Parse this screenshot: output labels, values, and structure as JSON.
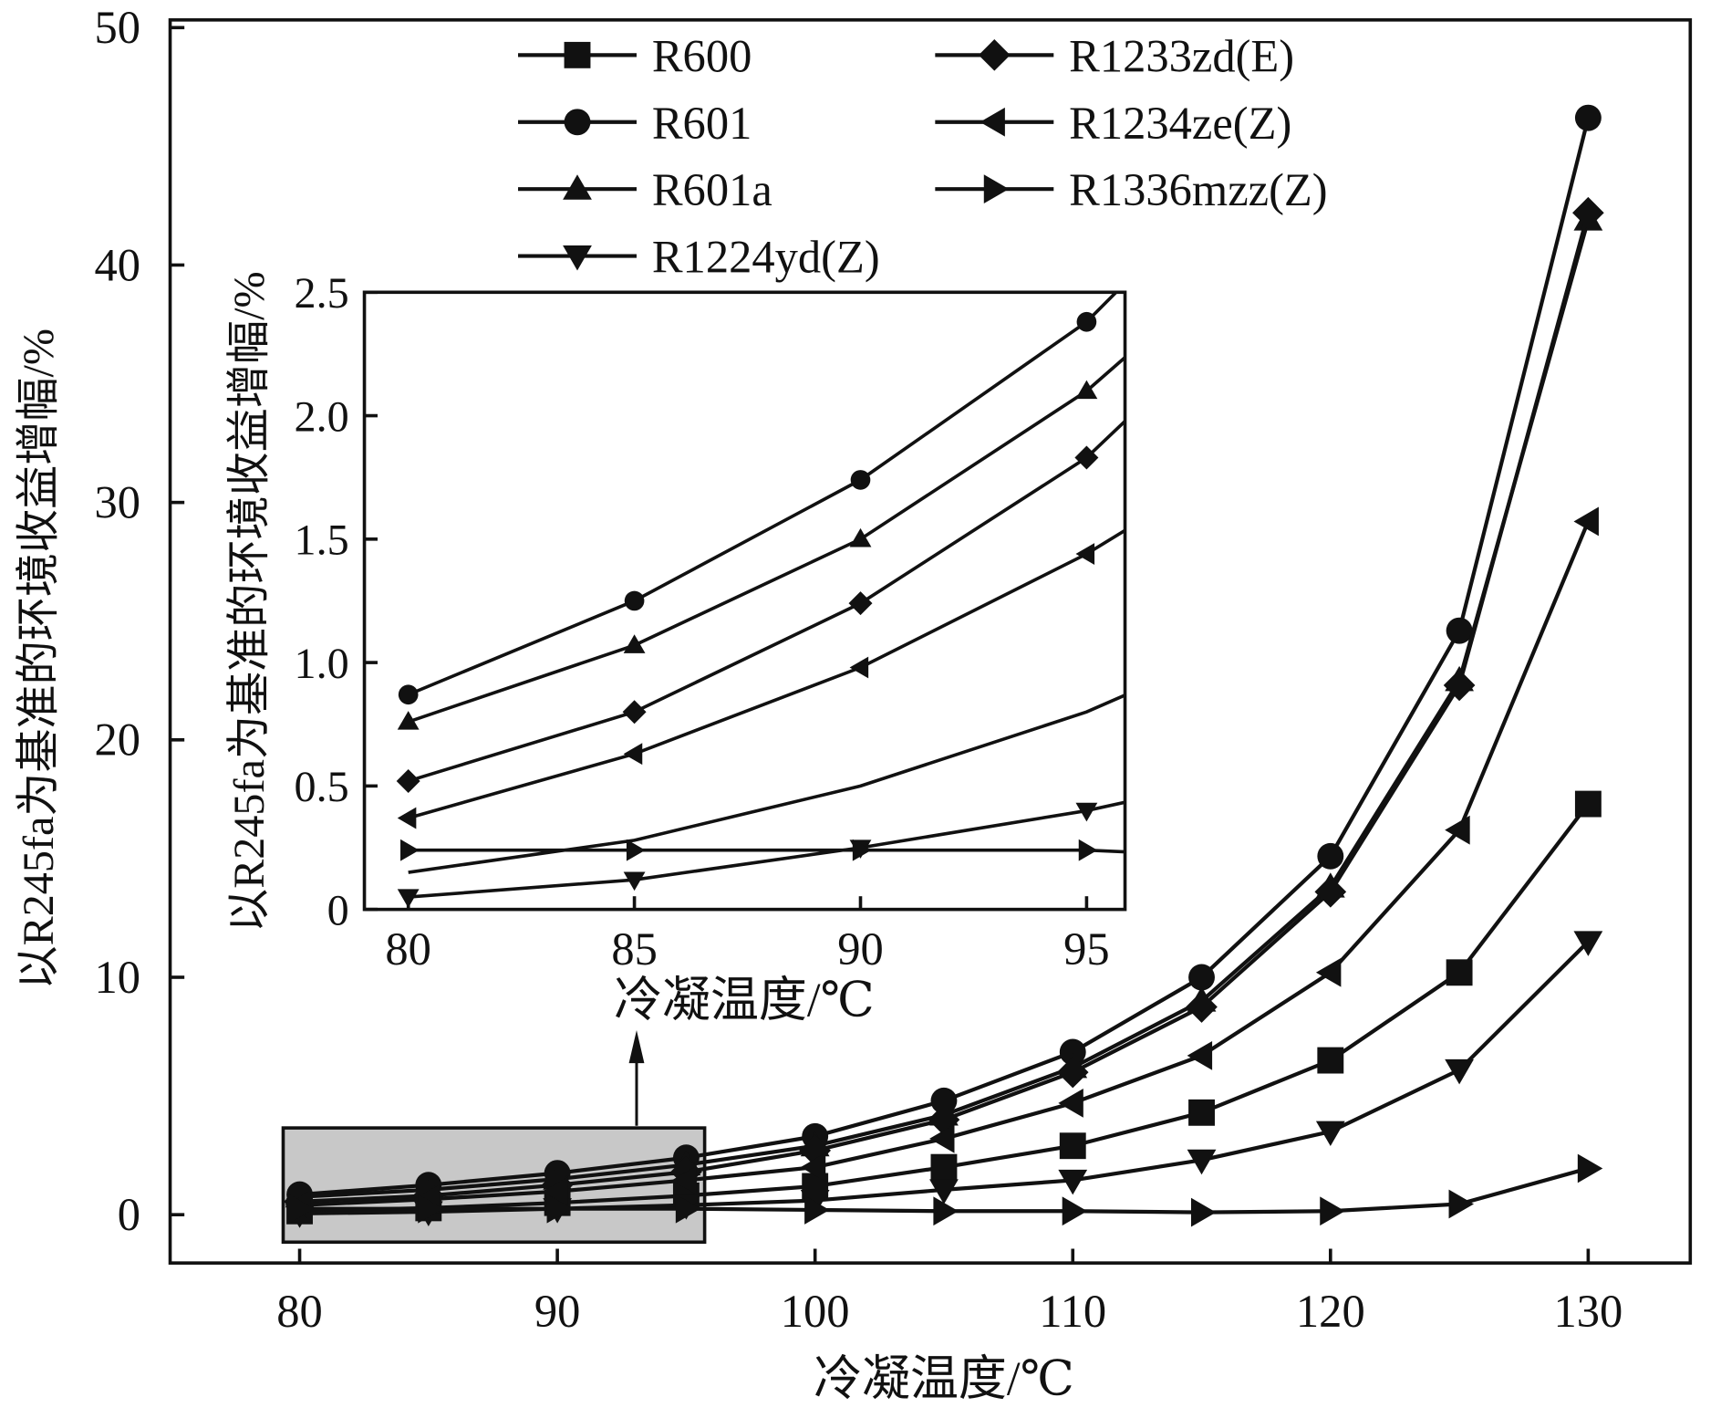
{
  "chart_data": [
    {
      "type": "line",
      "name": "main",
      "xlabel": "冷凝温度/℃",
      "ylabel": "以R245fa为基准的环境收益增幅/%",
      "xlim": [
        75,
        135
      ],
      "ylim": [
        -2,
        52
      ],
      "xticks": [
        80,
        90,
        100,
        110,
        120,
        130
      ],
      "yticks": [
        0,
        10,
        20,
        30,
        40,
        50
      ],
      "legend_position": "top",
      "x": [
        80,
        85,
        90,
        95,
        100,
        105,
        110,
        115,
        120,
        125,
        130
      ],
      "series": [
        {
          "name": "R600",
          "marker": "square",
          "values": [
            0.15,
            0.28,
            0.5,
            0.8,
            1.2,
            2.0,
            2.9,
            4.3,
            6.5,
            10.2,
            17.3
          ]
        },
        {
          "name": "R601",
          "marker": "circle",
          "values": [
            0.85,
            1.25,
            1.75,
            2.4,
            3.3,
            4.8,
            6.85,
            10.0,
            15.1,
            24.6,
            46.2
          ]
        },
        {
          "name": "R601a",
          "marker": "triangle-up",
          "values": [
            0.75,
            1.05,
            1.5,
            2.1,
            2.9,
            4.2,
            6.2,
            9.0,
            13.8,
            22.5,
            41.9
          ]
        },
        {
          "name": "R1224yd(Z)",
          "marker": "triangle-down",
          "values": [
            0.05,
            0.12,
            0.25,
            0.4,
            0.6,
            1.05,
            1.45,
            2.3,
            3.5,
            6.1,
            11.5
          ]
        },
        {
          "name": "R1233zd(E)",
          "marker": "diamond",
          "values": [
            0.55,
            0.8,
            1.25,
            1.8,
            2.7,
            4.0,
            6.0,
            8.75,
            13.6,
            22.3,
            42.2
          ]
        },
        {
          "name": "R1234ze(Z)",
          "marker": "triangle-left",
          "values": [
            0.4,
            0.65,
            0.98,
            1.45,
            2.0,
            3.2,
            4.7,
            6.7,
            10.2,
            16.2,
            29.2
          ]
        },
        {
          "name": "R1336mzz(Z)",
          "marker": "triangle-right",
          "values": [
            0.25,
            0.25,
            0.25,
            0.25,
            0.2,
            0.15,
            0.15,
            0.1,
            0.15,
            0.45,
            1.95
          ]
        }
      ]
    },
    {
      "type": "line",
      "name": "inset",
      "xlabel": "冷凝温度/℃",
      "ylabel": "以R245fa为基准的环境收益增幅/%",
      "xlim": [
        79,
        96
      ],
      "ylim": [
        0,
        2.5
      ],
      "xticks": [
        "80",
        "85",
        "90",
        "95"
      ],
      "yticks": [
        "0",
        "0.5",
        "1.0",
        "1.5",
        "2.0",
        "2.5"
      ],
      "x": [
        80,
        85,
        90,
        95,
        100
      ],
      "series": [
        {
          "name": "R600",
          "marker": "none",
          "values": [
            0.15,
            0.28,
            0.5,
            0.8,
            1.2
          ]
        },
        {
          "name": "R601",
          "marker": "circle",
          "values": [
            0.87,
            1.25,
            1.74,
            2.38,
            3.3
          ]
        },
        {
          "name": "R601a",
          "marker": "triangle-up",
          "values": [
            0.76,
            1.07,
            1.5,
            2.1,
            2.9
          ]
        },
        {
          "name": "R1224yd(Z)",
          "marker": "triangle-down",
          "values": [
            0.05,
            0.12,
            0.25,
            0.4,
            0.6
          ]
        },
        {
          "name": "R1233zd(E)",
          "marker": "diamond",
          "values": [
            0.52,
            0.8,
            1.24,
            1.83,
            2.7
          ]
        },
        {
          "name": "R1234ze(Z)",
          "marker": "triangle-left",
          "values": [
            0.37,
            0.63,
            0.98,
            1.44,
            2.0
          ]
        },
        {
          "name": "R1336mzz(Z)",
          "marker": "triangle-right",
          "values": [
            0.24,
            0.24,
            0.24,
            0.24,
            0.2
          ]
        }
      ]
    }
  ]
}
